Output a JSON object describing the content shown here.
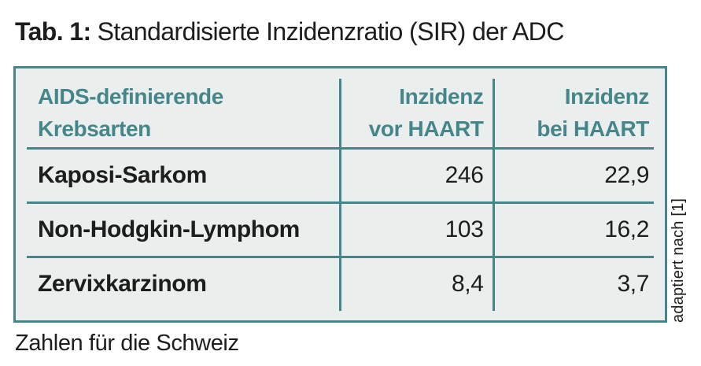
{
  "title": {
    "prefix": "Tab. 1:",
    "text": "Standardisierte Inzidenzratio (SIR) der ADC"
  },
  "table": {
    "header": {
      "col1_line1": "AIDS-definierende",
      "col1_line2": "Krebsarten",
      "col2_line1": "Inzidenz",
      "col2_line2": "vor HAART",
      "col3_line1": "Inzidenz",
      "col3_line2": "bei HAART"
    },
    "rows": [
      {
        "name": "Kaposi-Sarkom",
        "inzidenz_vor_haart": "246",
        "inzidenz_bei_haart": "22,9"
      },
      {
        "name": "Non-Hodgkin-Lymphom",
        "inzidenz_vor_haart": "103",
        "inzidenz_bei_haart": "16,2"
      },
      {
        "name": "Zervixkarzinom",
        "inzidenz_vor_haart": "8,4",
        "inzidenz_bei_haart": "3,7"
      }
    ]
  },
  "side_note": "adaptiert nach [1]",
  "footnote": "Zahlen für die Schweiz",
  "colors": {
    "accent_teal": "#45868B",
    "table_background": "#EAEFED",
    "text_dark": "#1D1D1B",
    "page_background": "#FFFFFF"
  }
}
